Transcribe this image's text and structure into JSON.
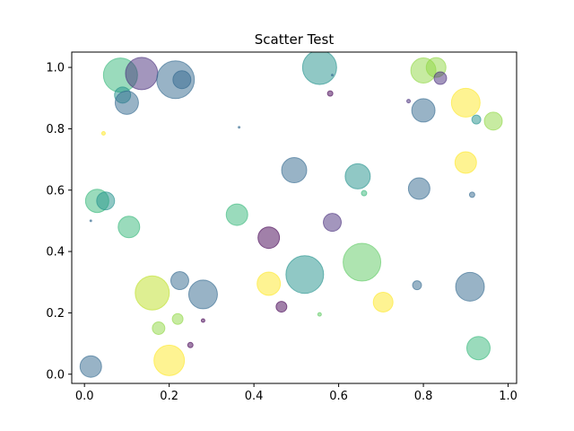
{
  "chart_data": {
    "type": "scatter",
    "title": "Scatter Test",
    "xlabel": "",
    "ylabel": "",
    "xlim": [
      -0.03,
      1.02
    ],
    "ylim": [
      -0.03,
      1.05
    ],
    "xticks": [
      0.0,
      0.2,
      0.4,
      0.6,
      0.8,
      1.0
    ],
    "yticks": [
      0.0,
      0.2,
      0.4,
      0.6,
      0.8,
      1.0
    ],
    "xtick_labels": [
      "0.0",
      "0.2",
      "0.4",
      "0.6",
      "0.8",
      "1.0"
    ],
    "ytick_labels": [
      "0.0",
      "0.2",
      "0.4",
      "0.6",
      "0.8",
      "1.0"
    ],
    "grid": false,
    "alpha": 0.5,
    "points": [
      {
        "x": 0.085,
        "y": 0.975,
        "r": 19,
        "color": "#35b779"
      },
      {
        "x": 0.135,
        "y": 0.98,
        "r": 18,
        "color": "#472d7b"
      },
      {
        "x": 0.215,
        "y": 0.96,
        "r": 21,
        "color": "#31688e"
      },
      {
        "x": 0.23,
        "y": 0.96,
        "r": 10,
        "color": "#31688e"
      },
      {
        "x": 0.09,
        "y": 0.91,
        "r": 9,
        "color": "#21918c"
      },
      {
        "x": 0.1,
        "y": 0.885,
        "r": 13,
        "color": "#31688e"
      },
      {
        "x": 0.045,
        "y": 0.785,
        "r": 2,
        "color": "#fde725"
      },
      {
        "x": 0.365,
        "y": 0.805,
        "r": 1,
        "color": "#31688e"
      },
      {
        "x": 0.555,
        "y": 1.0,
        "r": 19,
        "color": "#21918c"
      },
      {
        "x": 0.585,
        "y": 0.975,
        "r": 1,
        "color": "#31688e"
      },
      {
        "x": 0.58,
        "y": 0.915,
        "r": 3,
        "color": "#440154"
      },
      {
        "x": 0.8,
        "y": 0.99,
        "r": 14,
        "color": "#90d743"
      },
      {
        "x": 0.83,
        "y": 1.0,
        "r": 11,
        "color": "#90d743"
      },
      {
        "x": 0.84,
        "y": 0.965,
        "r": 7,
        "color": "#472d7b"
      },
      {
        "x": 0.765,
        "y": 0.89,
        "r": 2,
        "color": "#472d7b"
      },
      {
        "x": 0.8,
        "y": 0.86,
        "r": 13,
        "color": "#31688e"
      },
      {
        "x": 0.9,
        "y": 0.885,
        "r": 16,
        "color": "#fde725"
      },
      {
        "x": 0.925,
        "y": 0.83,
        "r": 5,
        "color": "#21918c"
      },
      {
        "x": 0.965,
        "y": 0.825,
        "r": 10,
        "color": "#90d743"
      },
      {
        "x": 0.9,
        "y": 0.69,
        "r": 12,
        "color": "#fde725"
      },
      {
        "x": 0.495,
        "y": 0.665,
        "r": 14,
        "color": "#31688e"
      },
      {
        "x": 0.645,
        "y": 0.645,
        "r": 14,
        "color": "#21918c"
      },
      {
        "x": 0.66,
        "y": 0.59,
        "r": 3,
        "color": "#35b779"
      },
      {
        "x": 0.79,
        "y": 0.605,
        "r": 12,
        "color": "#31688e"
      },
      {
        "x": 0.915,
        "y": 0.585,
        "r": 3,
        "color": "#31688e"
      },
      {
        "x": 0.03,
        "y": 0.565,
        "r": 13,
        "color": "#35b779"
      },
      {
        "x": 0.05,
        "y": 0.565,
        "r": 10,
        "color": "#21918c"
      },
      {
        "x": 0.015,
        "y": 0.5,
        "r": 1,
        "color": "#31688e"
      },
      {
        "x": 0.105,
        "y": 0.48,
        "r": 12,
        "color": "#35b779"
      },
      {
        "x": 0.36,
        "y": 0.52,
        "r": 12,
        "color": "#35b779"
      },
      {
        "x": 0.585,
        "y": 0.495,
        "r": 10,
        "color": "#472d7b"
      },
      {
        "x": 0.435,
        "y": 0.445,
        "r": 12,
        "color": "#440154"
      },
      {
        "x": 0.655,
        "y": 0.365,
        "r": 21,
        "color": "#5ec962"
      },
      {
        "x": 0.52,
        "y": 0.325,
        "r": 21,
        "color": "#21918c"
      },
      {
        "x": 0.91,
        "y": 0.285,
        "r": 16,
        "color": "#31688e"
      },
      {
        "x": 0.785,
        "y": 0.29,
        "r": 5,
        "color": "#31688e"
      },
      {
        "x": 0.16,
        "y": 0.265,
        "r": 19,
        "color": "#bddf26"
      },
      {
        "x": 0.225,
        "y": 0.305,
        "r": 10,
        "color": "#31688e"
      },
      {
        "x": 0.28,
        "y": 0.26,
        "r": 16,
        "color": "#31688e"
      },
      {
        "x": 0.435,
        "y": 0.295,
        "r": 13,
        "color": "#fde725"
      },
      {
        "x": 0.705,
        "y": 0.235,
        "r": 11,
        "color": "#fde725"
      },
      {
        "x": 0.465,
        "y": 0.22,
        "r": 6,
        "color": "#440154"
      },
      {
        "x": 0.555,
        "y": 0.195,
        "r": 2,
        "color": "#5ec962"
      },
      {
        "x": 0.22,
        "y": 0.18,
        "r": 6,
        "color": "#90d743"
      },
      {
        "x": 0.28,
        "y": 0.175,
        "r": 2,
        "color": "#440154"
      },
      {
        "x": 0.175,
        "y": 0.15,
        "r": 7,
        "color": "#90d743"
      },
      {
        "x": 0.25,
        "y": 0.095,
        "r": 3,
        "color": "#440154"
      },
      {
        "x": 0.2,
        "y": 0.045,
        "r": 17,
        "color": "#fde725"
      },
      {
        "x": 0.015,
        "y": 0.025,
        "r": 12,
        "color": "#31688e"
      },
      {
        "x": 0.93,
        "y": 0.085,
        "r": 13,
        "color": "#35b779"
      }
    ]
  }
}
